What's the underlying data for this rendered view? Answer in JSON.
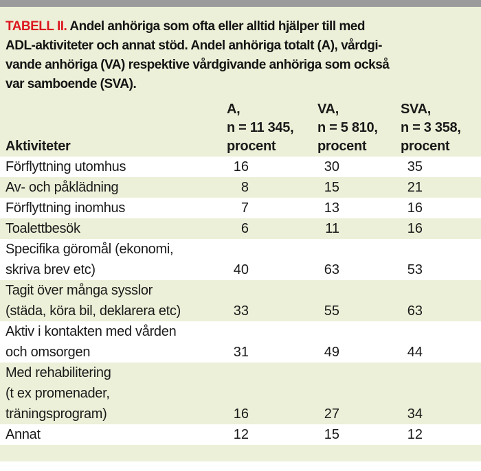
{
  "page": {
    "top_bar_color": "#9b9b9b",
    "panel_background": "#edf0d8",
    "accent_red": "#dc1820"
  },
  "caption": {
    "label": "TABELL II.",
    "text": " Andel anhöriga som ofta eller alltid hjälper till med\nADL-aktiviteter och annat stöd. Andel anhöriga totalt (A), vårdgi-\nvande anhöriga (VA) respektive vårdgivande anhöriga som också\nvar samboende (SVA)."
  },
  "table": {
    "row_header_label": "Aktiviteter",
    "columns": [
      {
        "label": "A,\nn = 11 345,\nprocent"
      },
      {
        "label": "VA,\nn = 5 810,\nprocent"
      },
      {
        "label": "SVA,\nn = 3 358,\nprocent"
      }
    ],
    "rows": [
      {
        "activity": "Förflyttning utomhus",
        "a": "16",
        "va": "30",
        "sva": "35"
      },
      {
        "activity": "Av- och påklädning",
        "a": "8",
        "va": "15",
        "sva": "21"
      },
      {
        "activity": "Förflyttning inomhus",
        "a": "7",
        "va": "13",
        "sva": "16"
      },
      {
        "activity": "Toalettbesök",
        "a": "6",
        "va": "11",
        "sva": "16"
      },
      {
        "activity": "Specifika göromål (ekonomi,\nskriva brev etc)",
        "a": "40",
        "va": "63",
        "sva": "53"
      },
      {
        "activity": "Tagit över många sysslor\n(städa, köra bil, deklarera etc)",
        "a": "33",
        "va": "55",
        "sva": "63"
      },
      {
        "activity": "Aktiv i kontakten med vården\noch omsorgen",
        "a": "31",
        "va": "49",
        "sva": "44"
      },
      {
        "activity": "Med rehabilitering\n(t ex promenader,\nträningsprogram)",
        "a": "16",
        "va": "27",
        "sva": "34"
      },
      {
        "activity": "Annat",
        "a": "12",
        "va": "15",
        "sva": "12"
      }
    ]
  }
}
